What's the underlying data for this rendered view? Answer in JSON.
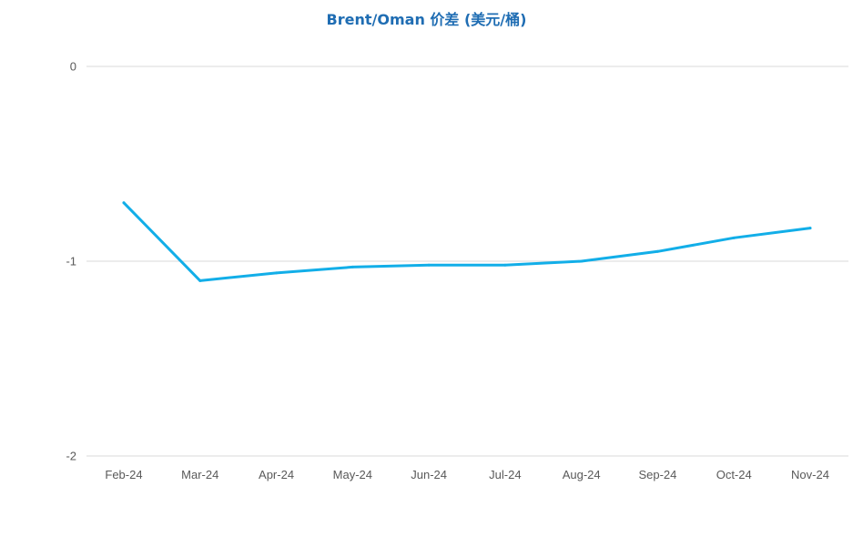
{
  "chart_data": {
    "type": "line",
    "title": "Brent/Oman 价差 (美元/桶)",
    "xlabel": "",
    "ylabel": "",
    "categories": [
      "Feb-24",
      "Mar-24",
      "Apr-24",
      "May-24",
      "Jun-24",
      "Jul-24",
      "Aug-24",
      "Sep-24",
      "Oct-24",
      "Nov-24"
    ],
    "series": [
      {
        "values": [
          -0.7,
          -1.1,
          -1.06,
          -1.03,
          -1.02,
          -1.02,
          -1.0,
          -0.95,
          -0.88,
          -0.83
        ],
        "color": "#12aee8"
      }
    ],
    "ylim": [
      -2,
      0
    ],
    "yticks": [
      "0",
      "-1",
      "-2"
    ],
    "ytick_values": [
      0,
      -1,
      -2
    ],
    "grid": true,
    "legend": "none",
    "gridline_color": "#d9d9d9",
    "title_color": "#1f6db3"
  }
}
